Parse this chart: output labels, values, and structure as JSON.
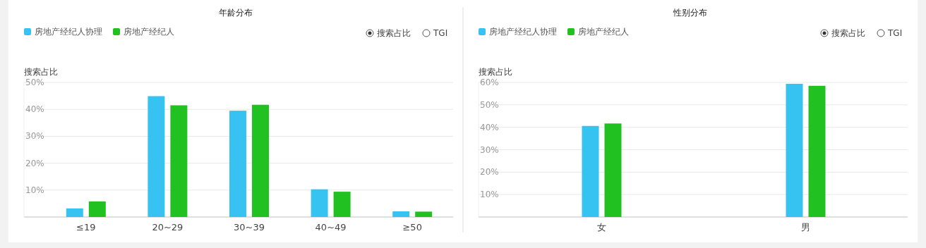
{
  "chart_data": [
    {
      "type": "bar",
      "title": "年龄分布",
      "ylabel": "搜索占比",
      "categories": [
        "≤19",
        "20~29",
        "30~39",
        "40~49",
        "≥50"
      ],
      "series": [
        {
          "name": "房地产经纪人协理",
          "color": "#37c3f2",
          "values": [
            3.2,
            44.9,
            39.5,
            10.3,
            2.1
          ]
        },
        {
          "name": "房地产经纪人",
          "color": "#22c122",
          "values": [
            5.8,
            41.5,
            41.7,
            9.4,
            2.0
          ]
        }
      ],
      "ylim": [
        0,
        50
      ],
      "yticks": [
        {
          "value": 0,
          "label": null
        },
        {
          "value": 10,
          "label": "10%"
        },
        {
          "value": 20,
          "label": "20%"
        },
        {
          "value": 30,
          "label": "30%"
        },
        {
          "value": 40,
          "label": "40%"
        },
        {
          "value": 50,
          "label": "50%"
        }
      ],
      "grid": "y",
      "legend": "top left",
      "annotations": [
        "搜索占比",
        "TGI"
      ]
    },
    {
      "type": "bar",
      "title": "性别分布",
      "ylabel": "搜索占比",
      "categories": [
        "女",
        "男"
      ],
      "series": [
        {
          "name": "房地产经纪人协理",
          "color": "#37c3f2",
          "values": [
            40.6,
            59.4
          ]
        },
        {
          "name": "房地产经纪人",
          "color": "#22c122",
          "values": [
            41.7,
            58.5
          ]
        }
      ],
      "ylim": [
        0,
        60
      ],
      "yticks": [
        {
          "value": 0,
          "label": null
        },
        {
          "value": 10,
          "label": "10%"
        },
        {
          "value": 20,
          "label": "20%"
        },
        {
          "value": 30,
          "label": "30%"
        },
        {
          "value": 40,
          "label": "40%"
        },
        {
          "value": 50,
          "label": "50%"
        },
        {
          "value": 60,
          "label": "60%"
        }
      ],
      "grid": "y",
      "legend": "top left",
      "annotations": [
        "搜索占比",
        "TGI"
      ]
    }
  ]
}
